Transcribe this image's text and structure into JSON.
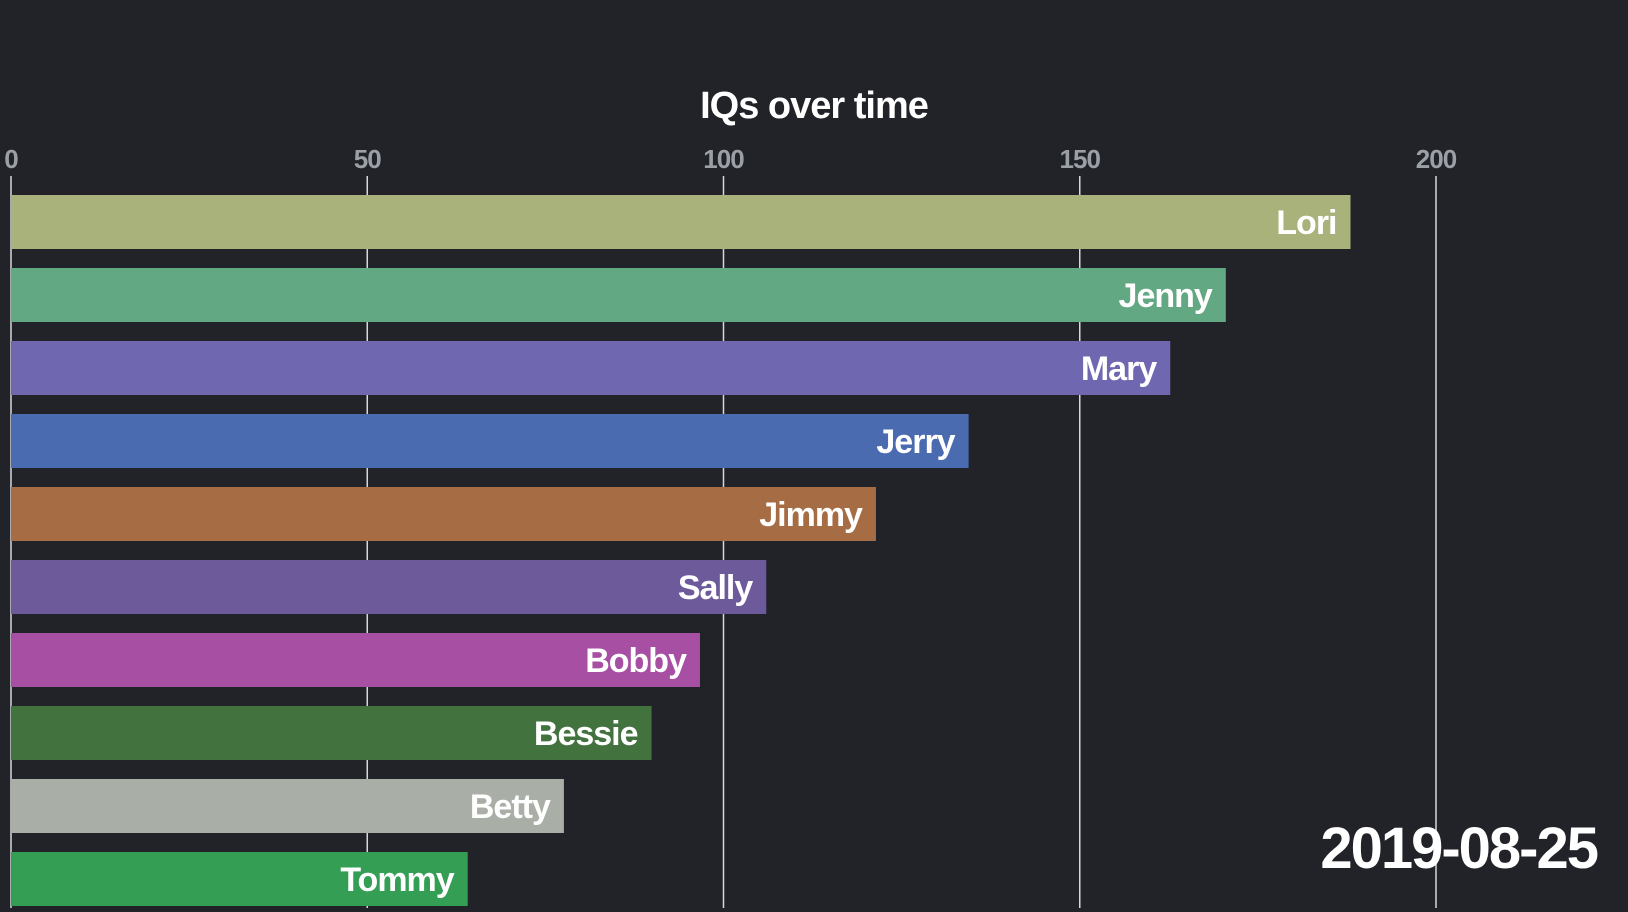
{
  "chart_data": {
    "type": "bar",
    "orientation": "horizontal",
    "title": "IQs over time",
    "xlabel": "",
    "ylabel": "",
    "xlim": [
      0,
      226
    ],
    "xticks": [
      0,
      50,
      100,
      150,
      200
    ],
    "xtick_labels": [
      "0",
      "50",
      "100",
      "150",
      "200"
    ],
    "tick_position": "top",
    "grid": true,
    "categories": [
      "Lori",
      "Jenny",
      "Mary",
      "Jerry",
      "Jimmy",
      "Sally",
      "Bobby",
      "Bessie",
      "Betty",
      "Tommy"
    ],
    "values": [
      188,
      170.5,
      162.7,
      134.4,
      121.4,
      106,
      96.7,
      89.9,
      77.6,
      64.1
    ],
    "colors": [
      "#aab27b",
      "#62a882",
      "#6f68b1",
      "#4a6bb0",
      "#a66c43",
      "#6c5a9a",
      "#a64fa3",
      "#42733f",
      "#a9afa6",
      "#349e55"
    ],
    "annotation": "2019-08-25"
  }
}
